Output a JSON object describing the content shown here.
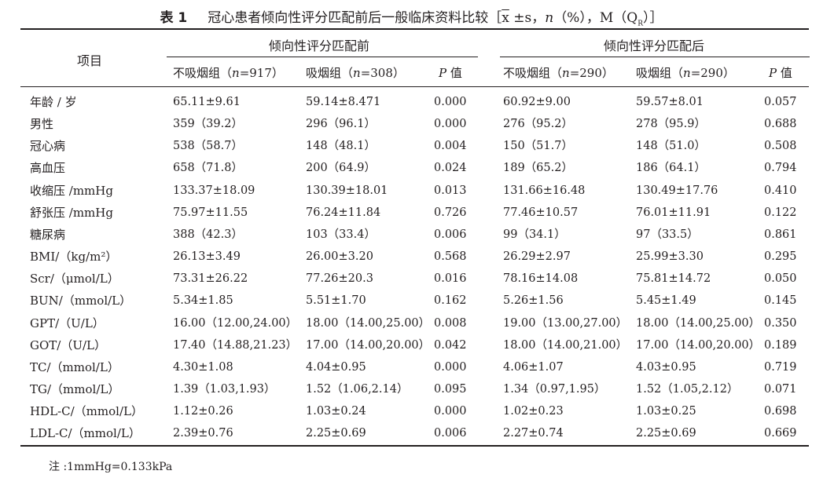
{
  "caption": {
    "number": "表 1",
    "title": "冠心患者倾向性评分匹配前后一般临床资料比较［",
    "formula_tail": " ±s，",
    "n_italic": "n",
    "percent": "（%），M（Q",
    "sub_r": "R",
    "close": "）］",
    "xbar": "x"
  },
  "header": {
    "item": "项目",
    "group_before": "倾向性评分匹配前",
    "group_after": "倾向性评分匹配后",
    "cols": [
      {
        "pre": "不吸烟组（",
        "n": "n",
        "post": "=917）"
      },
      {
        "pre": "吸烟组（",
        "n": "n",
        "post": "=308）"
      },
      {
        "pre": "",
        "n": "P",
        "post": " 值"
      },
      {
        "pre": "不吸烟组（",
        "n": "n",
        "post": "=290）"
      },
      {
        "pre": "吸烟组（",
        "n": "n",
        "post": "=290）"
      },
      {
        "pre": "",
        "n": "P",
        "post": " 值"
      }
    ]
  },
  "rows": [
    {
      "label": "年龄 / 岁",
      "c": [
        "65.11±9.61",
        "59.14±8.471",
        "0.000",
        "60.92±9.00",
        "59.57±8.01",
        "0.057"
      ]
    },
    {
      "label": "男性",
      "c": [
        "359（39.2）",
        "296（96.1）",
        "0.000",
        "276（95.2）",
        "278（95.9）",
        "0.688"
      ]
    },
    {
      "label": "冠心病",
      "c": [
        "538（58.7）",
        "148（48.1）",
        "0.004",
        "150（51.7）",
        "148（51.0）",
        "0.508"
      ]
    },
    {
      "label": "高血压",
      "c": [
        "658（71.8）",
        "200（64.9）",
        "0.024",
        "189（65.2）",
        "186（64.1）",
        "0.794"
      ]
    },
    {
      "label": "收缩压 /mmHg",
      "c": [
        "133.37±18.09",
        "130.39±18.01",
        "0.013",
        "131.66±16.48",
        "130.49±17.76",
        "0.410"
      ]
    },
    {
      "label": "舒张压 /mmHg",
      "c": [
        "75.97±11.55",
        "76.24±11.84",
        "0.726",
        "77.46±10.57",
        "76.01±11.91",
        "0.122"
      ]
    },
    {
      "label": "糖尿病",
      "c": [
        "388（42.3）",
        "103（33.4）",
        "0.006",
        "99（34.1）",
        "97（33.5）",
        "0.861"
      ]
    },
    {
      "label": "BMI/（kg/m²）",
      "c": [
        "26.13±3.49",
        "26.00±3.20",
        "0.568",
        "26.29±2.97",
        "25.99±3.30",
        "0.295"
      ]
    },
    {
      "label": "Scr/（μmol/L）",
      "c": [
        "73.31±26.22",
        "77.26±20.3",
        "0.016",
        "78.16±14.08",
        "75.81±14.72",
        "0.050"
      ]
    },
    {
      "label": "BUN/（mmol/L）",
      "c": [
        "5.34±1.85",
        "5.51±1.70",
        "0.162",
        "5.26±1.56",
        "5.45±1.49",
        "0.145"
      ]
    },
    {
      "label": "GPT/（U/L）",
      "c": [
        "16.00（12.00,24.00）",
        "18.00（14.00,25.00）",
        "0.008",
        "19.00（13.00,27.00）",
        "18.00（14.00,25.00）",
        "0.350"
      ]
    },
    {
      "label": "GOT/（U/L）",
      "c": [
        "17.40（14.88,21.23）",
        "17.00（14.00,20.00）",
        "0.042",
        "18.00（14.00,21.00）",
        "17.00（14.00,20.00）",
        "0.189"
      ]
    },
    {
      "label": "TC/（mmol/L）",
      "c": [
        "4.30±1.08",
        "4.04±0.95",
        "0.000",
        "4.06±1.07",
        "4.03±0.95",
        "0.719"
      ]
    },
    {
      "label": "TG/（mmol/L）",
      "c": [
        "1.39（1.03,1.93）",
        "1.52（1.06,2.14）",
        "0.095",
        "1.34（0.97,1.95）",
        "1.52（1.05,2.12）",
        "0.071"
      ]
    },
    {
      "label": "HDL-C/（mmol/L）",
      "c": [
        "1.12±0.26",
        "1.03±0.24",
        "0.000",
        "1.02±0.23",
        "1.03±0.25",
        "0.698"
      ]
    },
    {
      "label": "LDL-C/（mmol/L）",
      "c": [
        "2.39±0.76",
        "2.25±0.69",
        "0.006",
        "2.27±0.74",
        "2.25±0.69",
        "0.669"
      ]
    }
  ],
  "note": "注 :1mmHg=0.133kPa"
}
